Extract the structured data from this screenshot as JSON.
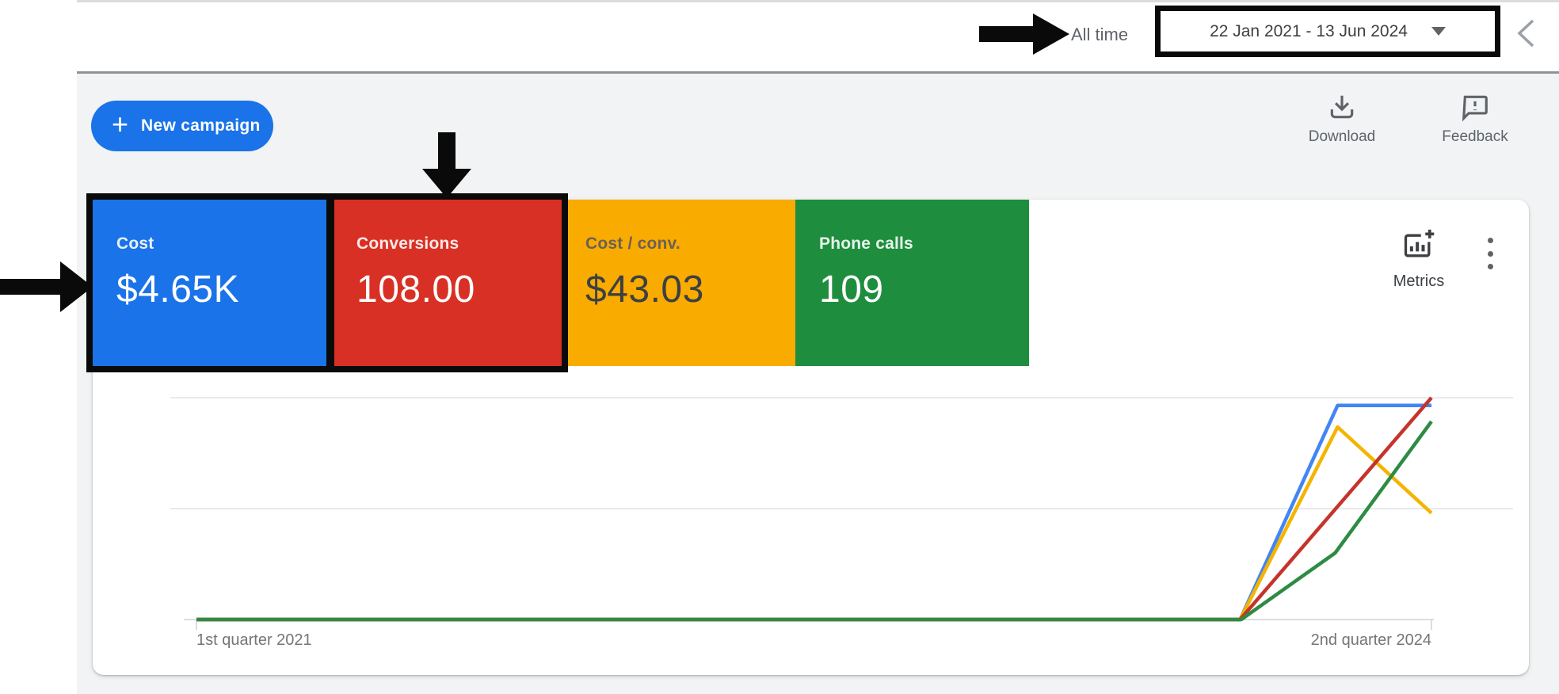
{
  "topbar": {
    "all_time_label": "All time",
    "date_range_value": "22 Jan 2021 - 13 Jun 2024"
  },
  "toolbar": {
    "new_campaign_label": "New campaign",
    "new_campaign_plus": "+",
    "download_label": "Download",
    "feedback_label": "Feedback"
  },
  "chart_header": {
    "metrics_label": "Metrics"
  },
  "scorecards": [
    {
      "label": "Cost",
      "value": "$4.65K",
      "bg": "#1a73e8",
      "fg": "#ffffff",
      "label_fg": "#e8f0fe",
      "highlighted": true
    },
    {
      "label": "Conversions",
      "value": "108.00",
      "bg": "#d93025",
      "fg": "#ffffff",
      "label_fg": "#fce8e6",
      "highlighted": true
    },
    {
      "label": "Cost / conv.",
      "value": "$43.03",
      "bg": "#f9ab00",
      "fg": "#3c4043",
      "label_fg": "#6b6154",
      "highlighted": false
    },
    {
      "label": "Phone calls",
      "value": "109",
      "bg": "#1e8e3e",
      "fg": "#ffffff",
      "label_fg": "#e6f4ea",
      "highlighted": false
    }
  ],
  "chart_data": {
    "type": "line",
    "x_axis_labels": [
      "1st quarter 2021",
      "2nd quarter 2024"
    ],
    "y_gridline_values": [
      0,
      0.5,
      1
    ],
    "grid": "on",
    "legend": "none",
    "series": [
      {
        "name": "Cost",
        "color": "#4285f4",
        "points": [
          [
            0,
            0
          ],
          [
            0.845,
            0
          ],
          [
            0.924,
            0.965
          ],
          [
            1,
            0.965
          ]
        ]
      },
      {
        "name": "Cost / conv.",
        "color": "#f4b400",
        "points": [
          [
            0,
            0
          ],
          [
            0.845,
            0
          ],
          [
            0.924,
            0.868
          ],
          [
            1,
            0.48
          ]
        ]
      },
      {
        "name": "Conversions",
        "color": "#c5342b",
        "points": [
          [
            0,
            0
          ],
          [
            0.845,
            0
          ],
          [
            1,
            1.0
          ]
        ]
      },
      {
        "name": "Phone calls",
        "color": "#2e8b43",
        "points": [
          [
            0,
            0
          ],
          [
            0.846,
            0
          ],
          [
            0.922,
            0.3
          ],
          [
            1,
            0.893
          ]
        ]
      }
    ]
  }
}
